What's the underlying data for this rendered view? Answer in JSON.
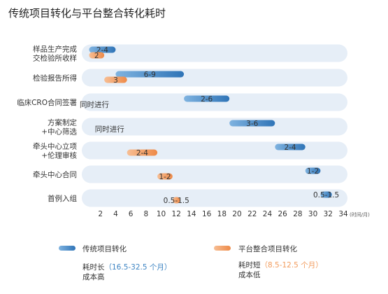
{
  "title": "传统项目转化与平台整合转化耗时",
  "chart_data": {
    "type": "bar",
    "subtype": "gantt-range",
    "title": "传统项目转化与平台整合转化耗时",
    "xlim": [
      0,
      34
    ],
    "xticks": [
      2,
      4,
      6,
      8,
      10,
      12,
      14,
      16,
      18,
      20,
      22,
      24,
      26,
      28,
      30,
      32,
      34
    ],
    "x_unit": "(时间/月)",
    "grid": false,
    "categories": [
      [
        "样品生产完成",
        "交检验所收样"
      ],
      [
        "检验报告所得"
      ],
      [
        "临床CRO合同签署"
      ],
      [
        "方案制定",
        "+中心筛选"
      ],
      [
        "牵头中心立项",
        "+伦理审核"
      ],
      [
        "牵头中心合同"
      ],
      [
        "首例入组"
      ]
    ],
    "series": [
      {
        "name": "传统项目转化",
        "color": "#3d84c3",
        "items": [
          {
            "row": 0,
            "start": 0.5,
            "end": 4.0,
            "label": "2-4"
          },
          {
            "row": 1,
            "start": 4.0,
            "end": 13.0,
            "label": "6-9"
          },
          {
            "row": 2,
            "start": 13.0,
            "end": 19.0,
            "label": "2-6"
          },
          {
            "row": 3,
            "start": 19.0,
            "end": 25.0,
            "label": "3-6"
          },
          {
            "row": 4,
            "start": 25.0,
            "end": 29.0,
            "label": "2-4"
          },
          {
            "row": 5,
            "start": 29.0,
            "end": 31.0,
            "label": "1-2"
          },
          {
            "row": 6,
            "start": 31.0,
            "end": 32.5,
            "label": "0.5-1.5"
          }
        ]
      },
      {
        "name": "平台整合项目转化",
        "color": "#f29b5c",
        "items": [
          {
            "row": 0,
            "start": 0.5,
            "end": 2.5,
            "label": "2"
          },
          {
            "row": 1,
            "start": 2.5,
            "end": 5.5,
            "label": "3"
          },
          {
            "row": 2,
            "start": 0.0,
            "end": 2.0,
            "label": "同时进行"
          },
          {
            "row": 3,
            "start": 2.0,
            "end": 5.5,
            "label": "同时进行"
          },
          {
            "row": 4,
            "start": 5.5,
            "end": 9.5,
            "label": "2-4"
          },
          {
            "row": 5,
            "start": 9.5,
            "end": 11.5,
            "label": "1-2"
          },
          {
            "row": 6,
            "start": 11.5,
            "end": 12.5,
            "label": "0.5-1.5"
          }
        ]
      }
    ]
  },
  "legend": {
    "traditional": {
      "label": "传统项目转化",
      "line1_prefix": "耗时长",
      "line1_value": "（16.5-32.5 个月）",
      "line2": "成本高"
    },
    "platform": {
      "label": "平台整合项目转化",
      "line1_prefix": "耗时短",
      "line1_value": "（8.5-12.5 个月）",
      "line2": "成本低"
    }
  }
}
